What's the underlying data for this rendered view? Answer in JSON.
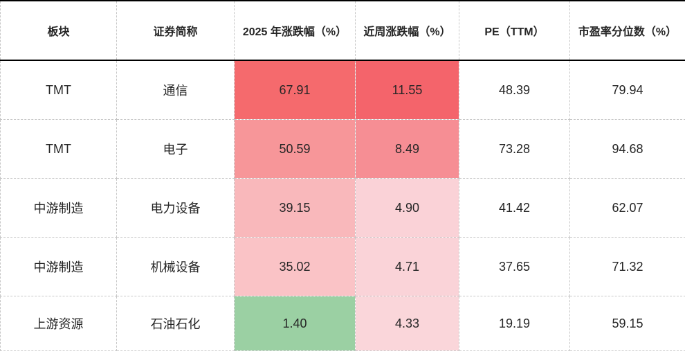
{
  "table": {
    "headers": [
      "板块",
      "证券简称",
      "2025 年涨跌幅（%）",
      "近周涨跌幅（%）",
      "PE（TTM）",
      "市盈率分位数（%）"
    ],
    "rows": [
      {
        "sector": "TMT",
        "name": "通信",
        "ytd_change": "67.91",
        "week_change": "11.55",
        "pe_ttm": "48.39",
        "pe_percentile": "79.94",
        "ytd_fill": "#f56a6d",
        "week_fill": "#f4646b"
      },
      {
        "sector": "TMT",
        "name": "电子",
        "ytd_change": "50.59",
        "week_change": "8.49",
        "pe_ttm": "73.28",
        "pe_percentile": "94.68",
        "ytd_fill": "#f79699",
        "week_fill": "#f68e94"
      },
      {
        "sector": "中游制造",
        "name": "电力设备",
        "ytd_change": "39.15",
        "week_change": "4.90",
        "pe_ttm": "41.42",
        "pe_percentile": "62.07",
        "ytd_fill": "#f9b8bb",
        "week_fill": "#fad2d7"
      },
      {
        "sector": "中游制造",
        "name": "机械设备",
        "ytd_change": "35.02",
        "week_change": "4.71",
        "pe_ttm": "37.65",
        "pe_percentile": "71.32",
        "ytd_fill": "#fac3c6",
        "week_fill": "#fad3d8"
      },
      {
        "sector": "上游资源",
        "name": "石油石化",
        "ytd_change": "1.40",
        "week_change": "4.33",
        "pe_ttm": "19.19",
        "pe_percentile": "59.15",
        "ytd_fill": "#9bd0a3",
        "week_fill": "#fad6da"
      }
    ]
  },
  "colors": {
    "heat_max_red": "#f4646b",
    "heat_mid_red": "#f79699",
    "heat_light_red": "#fad6da",
    "heat_green": "#9bd0a3",
    "grid_dashed": "#c6c6c6",
    "rule_solid": "#000000",
    "text": "#262626",
    "background": "#ffffff"
  },
  "chart_data": {
    "type": "table",
    "title": "",
    "columns": [
      "板块",
      "证券简称",
      "2025 年涨跌幅（%）",
      "近周涨跌幅（%）",
      "PE（TTM）",
      "市盈率分位数（%）"
    ],
    "rows": [
      [
        "TMT",
        "通信",
        67.91,
        11.55,
        48.39,
        79.94
      ],
      [
        "TMT",
        "电子",
        50.59,
        8.49,
        73.28,
        94.68
      ],
      [
        "中游制造",
        "电力设备",
        39.15,
        4.9,
        41.42,
        62.07
      ],
      [
        "中游制造",
        "机械设备",
        35.02,
        4.71,
        37.65,
        71.32
      ],
      [
        "上游资源",
        "石油石化",
        1.4,
        4.33,
        19.19,
        59.15
      ]
    ],
    "heatmap_columns": [
      "2025 年涨跌幅（%）",
      "近周涨跌幅（%）"
    ],
    "heatmap_scale": "red = high positive change, green = low change, scaled per column",
    "grid": "dashed gray cell borders, solid black rule above and below header row",
    "legend": "none"
  }
}
